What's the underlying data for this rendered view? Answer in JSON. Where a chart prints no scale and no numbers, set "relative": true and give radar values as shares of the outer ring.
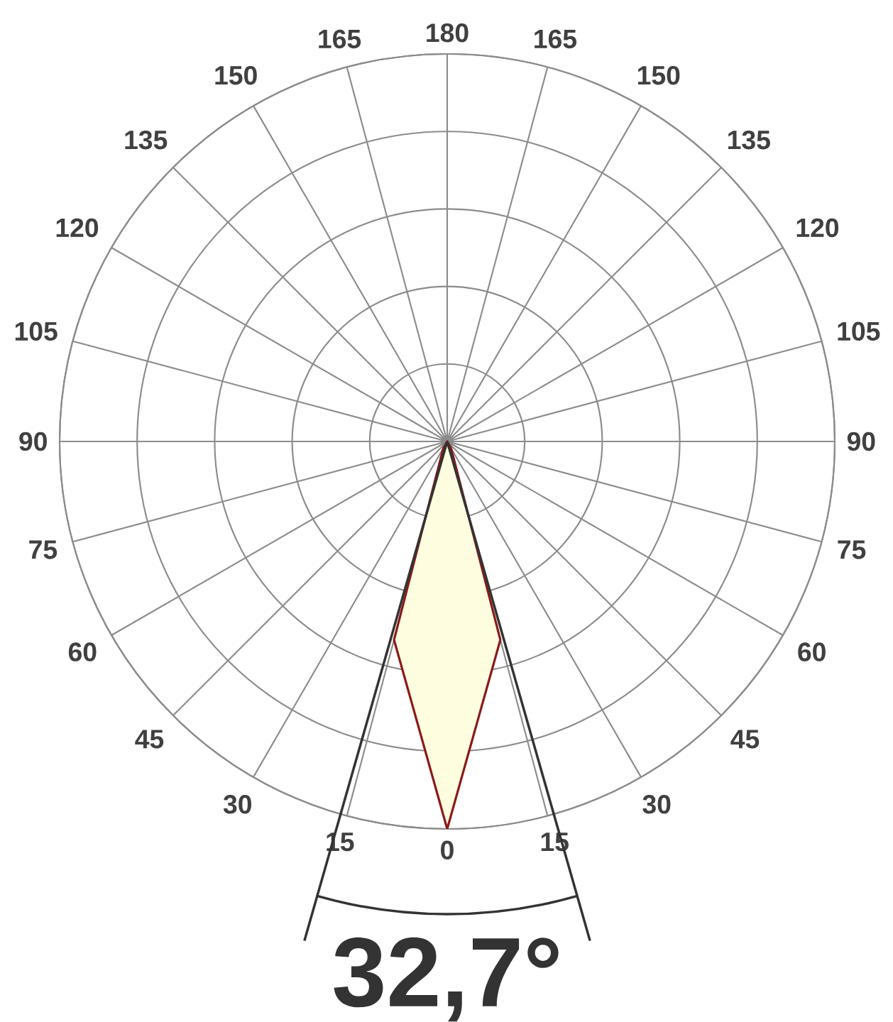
{
  "chart_data": {
    "type": "radar",
    "relative": true,
    "grid": true,
    "categories": [
      "180",
      "165",
      "150",
      "135",
      "120",
      "105",
      "90",
      "75",
      "60",
      "45",
      "30",
      "15",
      "0",
      "15",
      "30",
      "45",
      "60",
      "75",
      "90",
      "105",
      "120",
      "135",
      "150",
      "165"
    ],
    "series": [
      {
        "color": "#8b1a1a",
        "values": [
          0,
          0,
          0,
          0,
          0,
          0,
          0,
          0,
          0,
          0,
          0.02,
          0.53,
          1.0,
          0.53,
          0.02,
          0,
          0,
          0,
          0,
          0,
          0,
          0,
          0,
          0
        ]
      }
    ],
    "annotations": [
      "32,7°"
    ]
  }
}
